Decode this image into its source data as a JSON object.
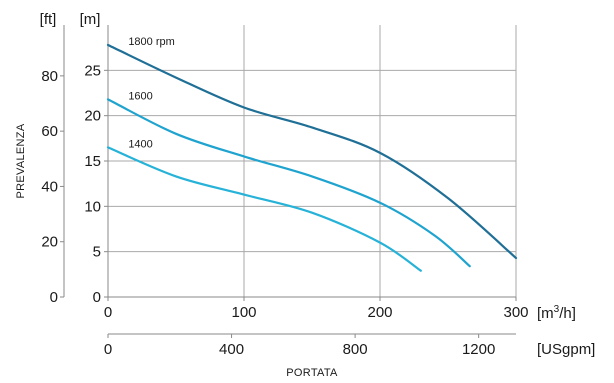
{
  "chart_data": {
    "type": "line",
    "title": "",
    "xlabel": "PORTATA",
    "ylabel": "PREVALENZA",
    "grid": true,
    "x_axis_primary": {
      "unit": "[m³/h]",
      "unit_base": "[m",
      "unit_sup": "3",
      "unit_tail": "/h]",
      "range": [
        0,
        300
      ],
      "ticks": [
        0,
        100,
        200,
        300
      ]
    },
    "x_axis_secondary": {
      "unit": "[USgpm]",
      "range": [
        0,
        1320.9
      ],
      "ticks": [
        0,
        400,
        800,
        1200
      ]
    },
    "y_axis_primary": {
      "unit": "[m]",
      "range": [
        0,
        30
      ],
      "ticks": [
        0,
        5,
        10,
        15,
        20,
        25
      ]
    },
    "y_axis_secondary": {
      "unit": "[ft]",
      "range": [
        0,
        98.4
      ],
      "ticks": [
        0,
        20,
        40,
        60,
        80
      ]
    },
    "series": [
      {
        "name": "1800 rpm",
        "color": "#1f6f96",
        "points": [
          [
            0,
            27.8
          ],
          [
            50,
            24.2
          ],
          [
            100,
            20.9
          ],
          [
            150,
            18.7
          ],
          [
            200,
            15.9
          ],
          [
            250,
            10.9
          ],
          [
            300,
            4.3
          ]
        ]
      },
      {
        "name": "1600",
        "color": "#1fa3cf",
        "points": [
          [
            0,
            21.8
          ],
          [
            50,
            18.0
          ],
          [
            100,
            15.5
          ],
          [
            150,
            13.3
          ],
          [
            200,
            10.4
          ],
          [
            240,
            6.8
          ],
          [
            266,
            3.4
          ]
        ]
      },
      {
        "name": "1400",
        "color": "#27b2d8",
        "points": [
          [
            0,
            16.5
          ],
          [
            50,
            13.3
          ],
          [
            100,
            11.3
          ],
          [
            150,
            9.3
          ],
          [
            200,
            6.0
          ],
          [
            230,
            2.9
          ]
        ]
      }
    ]
  }
}
